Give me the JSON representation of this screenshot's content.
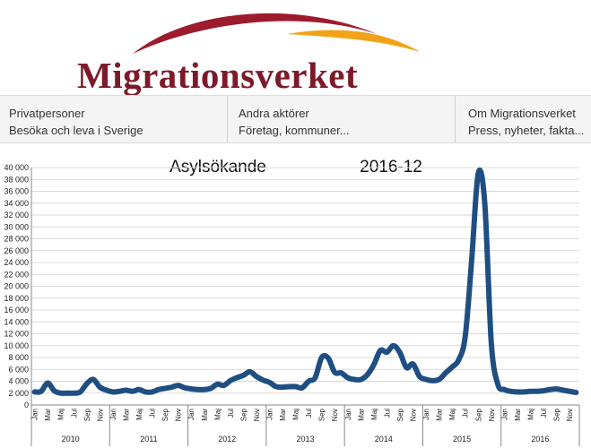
{
  "header": {
    "logo_text": "Migrationsverket",
    "colors": {
      "arc_top": "#9c1b2d",
      "arc_bottom": "#f0a318",
      "text": "#7d1a2a"
    }
  },
  "nav": {
    "items": [
      {
        "title": "Privatpersoner",
        "subtitle": "Besöka och leva i Sverige"
      },
      {
        "title": "Andra aktörer",
        "subtitle": "Företag, kommuner..."
      },
      {
        "title": "Om Migrationsverket",
        "subtitle": "Press, nyheter, fakta..."
      }
    ]
  },
  "chart_data": {
    "type": "line",
    "title": "Asylsökande",
    "subtitle": "2016-12",
    "ylim": [
      0,
      40000
    ],
    "yticks": [
      "0",
      "2 000",
      "4 000",
      "6 000",
      "8 000",
      "10 000",
      "12 000",
      "14 000",
      "16 000",
      "18 000",
      "20 000",
      "22 000",
      "24 000",
      "26 000",
      "28 000",
      "30 000",
      "32 000",
      "34 000",
      "36 000",
      "38 000",
      "40 000"
    ],
    "month_labels": [
      "Jan",
      "Mar",
      "Maj",
      "Jul",
      "Sep",
      "Nov"
    ],
    "years": [
      "2010",
      "2011",
      "2012",
      "2013",
      "2014",
      "2015",
      "2016"
    ],
    "grid": true,
    "line_color": "#1f4e82",
    "values": [
      2200,
      2300,
      3700,
      2400,
      2000,
      2000,
      2000,
      2200,
      3600,
      4300,
      3000,
      2500,
      2200,
      2300,
      2500,
      2300,
      2600,
      2200,
      2200,
      2600,
      2800,
      3000,
      3300,
      2900,
      2700,
      2600,
      2600,
      2800,
      3500,
      3300,
      4100,
      4600,
      5000,
      5600,
      4800,
      4200,
      3800,
      3100,
      3000,
      3100,
      3100,
      2900,
      4000,
      4600,
      8000,
      7900,
      5500,
      5400,
      4600,
      4300,
      4300,
      5100,
      6800,
      9200,
      8900,
      10000,
      8800,
      6300,
      6900,
      4800,
      4300,
      4100,
      4300,
      5400,
      6400,
      7600,
      11500,
      24500,
      39000,
      34000,
      10500,
      3500,
      2600,
      2300,
      2200,
      2200,
      2300,
      2300,
      2400,
      2600,
      2700,
      2500,
      2300,
      2100
    ]
  }
}
